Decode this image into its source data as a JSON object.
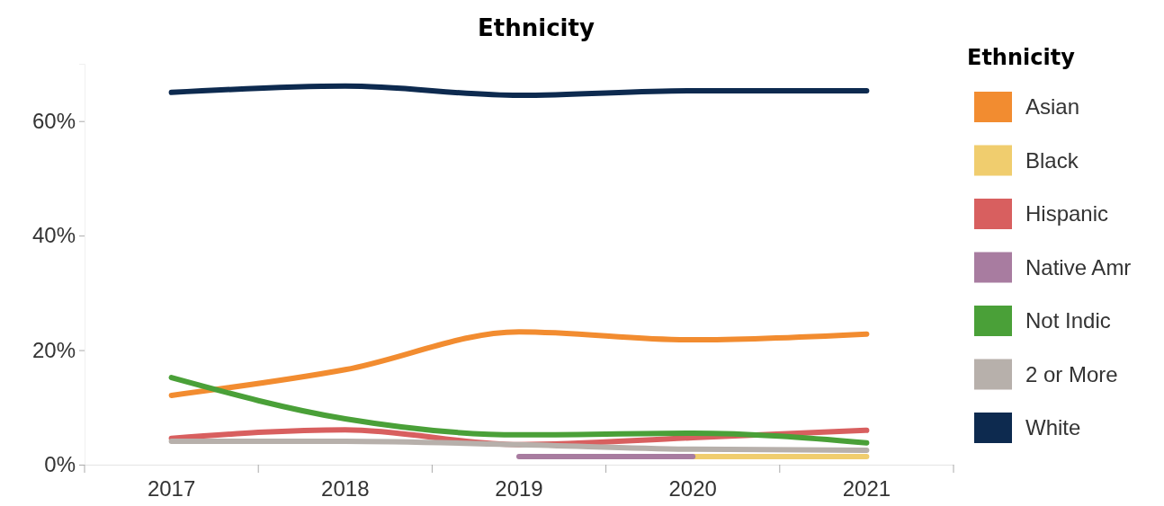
{
  "chart_data": {
    "type": "line",
    "title": "Ethnicity",
    "legend_title": "Ethnicity",
    "categories": [
      "2017",
      "2018",
      "2019",
      "2020",
      "2021"
    ],
    "ylim": [
      0,
      70
    ],
    "yticks": [
      {
        "value": 0,
        "label": "0%"
      },
      {
        "value": 20,
        "label": "20%"
      },
      {
        "value": 40,
        "label": "40%"
      },
      {
        "value": 60,
        "label": "60%"
      }
    ],
    "grid": false,
    "legend": "right",
    "marker": "none",
    "line_style": "solid",
    "series": [
      {
        "name": "Asian",
        "color": "#f28c30",
        "values": [
          12.1,
          16.6,
          23.2,
          21.8,
          22.8
        ]
      },
      {
        "name": "Black",
        "color": "#f0cd6e",
        "values": [
          null,
          null,
          null,
          1.4,
          1.4
        ]
      },
      {
        "name": "Hispanic",
        "color": "#d85f5f",
        "values": [
          4.6,
          6.1,
          3.5,
          4.7,
          6.0
        ]
      },
      {
        "name": "Native Amr",
        "color": "#a87ca0",
        "values": [
          null,
          null,
          1.4,
          1.4,
          null
        ]
      },
      {
        "name": "Not Indic",
        "color": "#4aa038",
        "values": [
          15.2,
          8.0,
          5.2,
          5.5,
          3.8
        ]
      },
      {
        "name": "2 or More",
        "color": "#b7b0ab",
        "values": [
          4.1,
          4.1,
          3.5,
          2.7,
          2.5
        ]
      },
      {
        "name": "White",
        "color": "#0d2a4f",
        "values": [
          65.0,
          66.1,
          64.5,
          65.3,
          65.3
        ]
      }
    ]
  }
}
